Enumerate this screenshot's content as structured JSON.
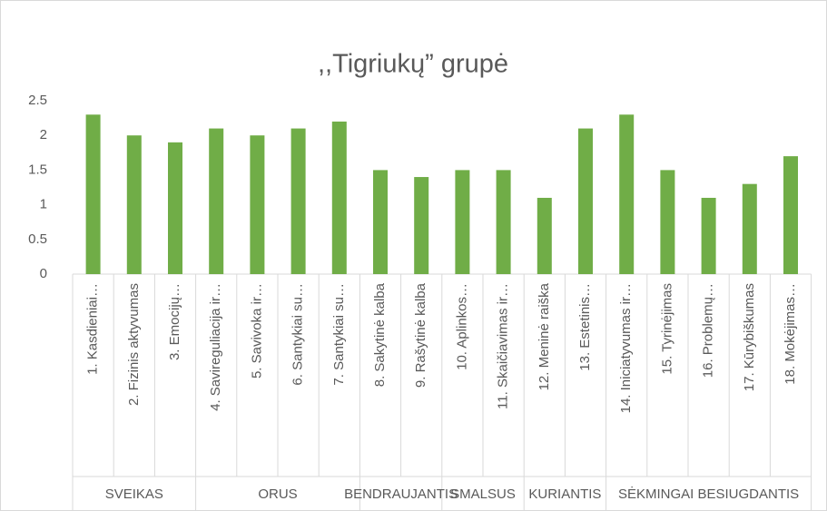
{
  "chart_data": {
    "type": "bar",
    "title": ",,Tigriukų” grupė",
    "color": "#70ad47",
    "ylim": [
      0,
      2.5
    ],
    "yticks": [
      0,
      0.5,
      1,
      1.5,
      2,
      2.5
    ],
    "grid": false,
    "groups": [
      {
        "name": "SVEIKAS",
        "categories": [
          "1. Kasdieniai…",
          "2. Fizinis aktyvumas",
          "3. Emocijų…"
        ],
        "values": [
          2.3,
          2.0,
          1.9
        ]
      },
      {
        "name": "ORUS",
        "categories": [
          "4. Savireguliacija ir…",
          "5. Savivoka ir…",
          "6. Santykiai su…",
          "7. Santykiai su…"
        ],
        "values": [
          2.1,
          2.0,
          2.1,
          2.2
        ]
      },
      {
        "name": "BENDRAUJANTIS",
        "categories": [
          "8. Sakytinė kalba",
          "9. Rašytinė kalba"
        ],
        "values": [
          1.5,
          1.4
        ]
      },
      {
        "name": "SMALSUS",
        "categories": [
          "10. Aplinkos…",
          "11. Skaičiavimas ir…"
        ],
        "values": [
          1.5,
          1.5
        ]
      },
      {
        "name": "KURIANTIS",
        "categories": [
          "12. Meninė raiška",
          "13. Estetinis…"
        ],
        "values": [
          1.1,
          2.1
        ]
      },
      {
        "name": "SĖKMINGAI BESIUGDANTIS",
        "categories": [
          "14. Iniciatyvumas ir…",
          "15. Tyrinėjimas",
          "16. Problemų…",
          "17. Kūrybiškumas",
          "18. Mokėjimas…"
        ],
        "values": [
          2.3,
          1.5,
          1.1,
          1.3,
          1.7
        ]
      }
    ]
  }
}
